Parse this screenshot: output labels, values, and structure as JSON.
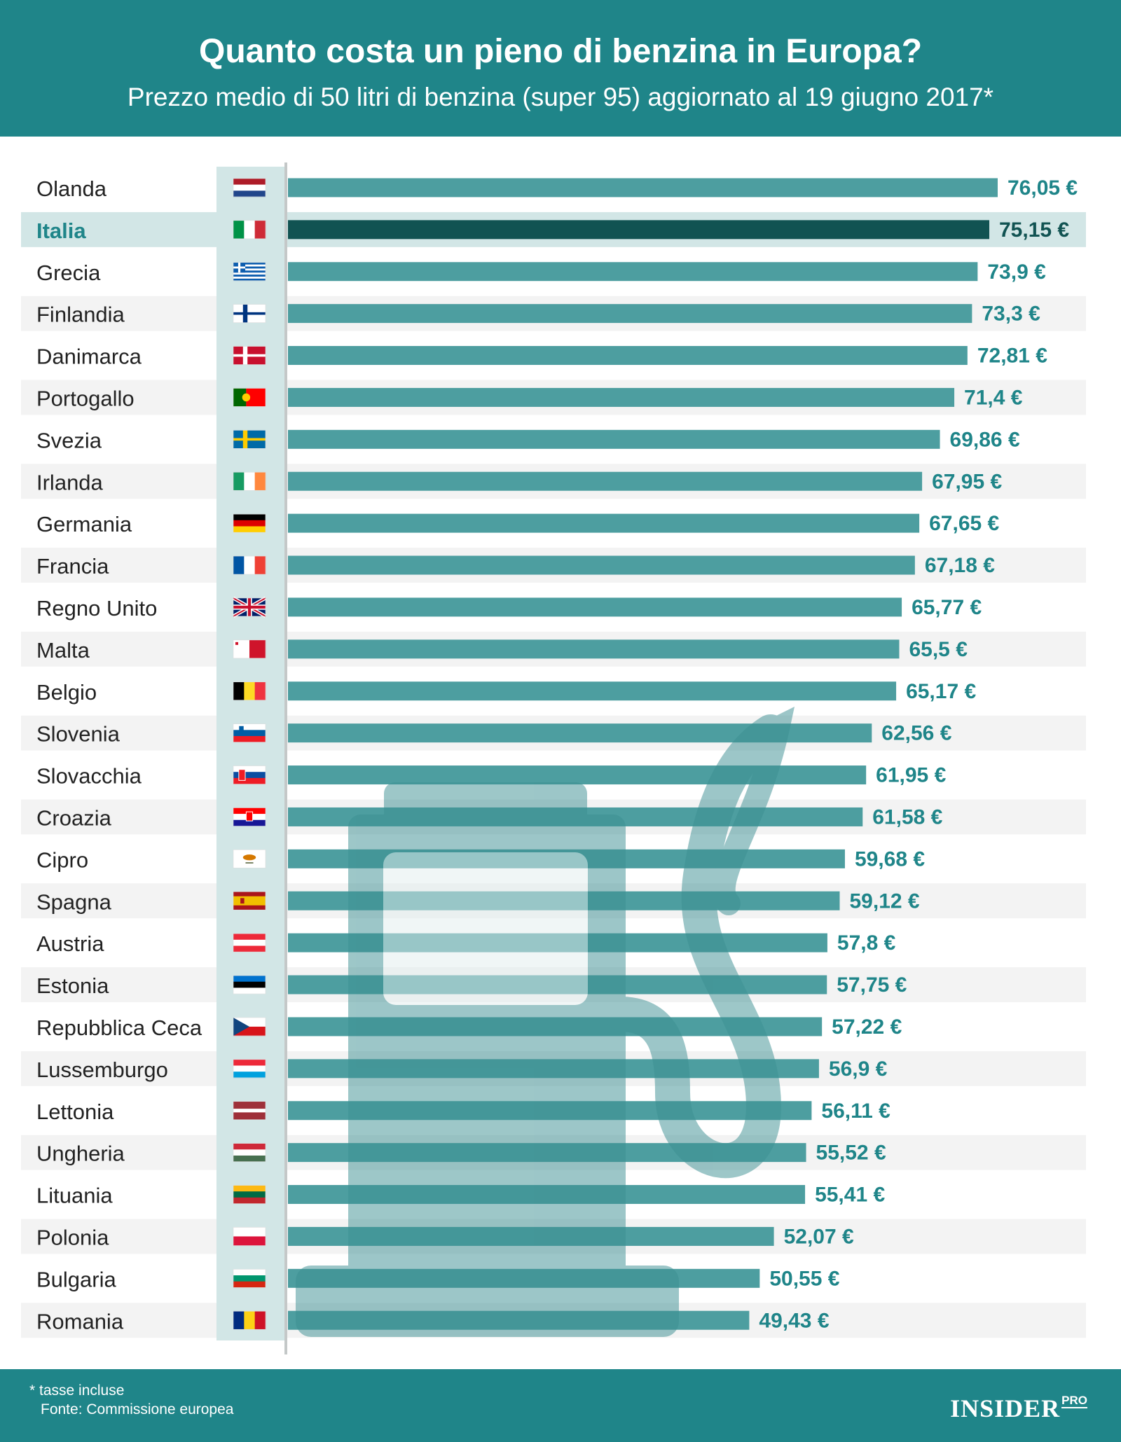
{
  "title": "Quanto costa un pieno di benzina in Europa?",
  "subtitle": "Prezzo medio di 50 litri di benzina (super 95) aggiornato al 19 giugno 2017*",
  "footer": {
    "note": "* tasse incluse",
    "source": "Fonte: Commissione europea",
    "brand": "INSIDER",
    "brand_sub": "PRO"
  },
  "colors": {
    "header_bg": "#1f8589",
    "bar": "#4d9ea0",
    "bar_highlight": "#115352",
    "value_text": "#1f8589",
    "highlight_row": "#d2e6e6",
    "stripe": "#f3f3f3"
  },
  "chart_data": {
    "type": "bar",
    "orientation": "horizontal",
    "highlight": "Italia",
    "categories": [
      "Olanda",
      "Italia",
      "Grecia",
      "Finlandia",
      "Danimarca",
      "Portogallo",
      "Svezia",
      "Irlanda",
      "Germania",
      "Francia",
      "Regno Unito",
      "Malta",
      "Belgio",
      "Slovenia",
      "Slovacchia",
      "Croazia",
      "Cipro",
      "Spagna",
      "Austria",
      "Estonia",
      "Repubblica Ceca",
      "Lussemburgo",
      "Lettonia",
      "Ungheria",
      "Lituania",
      "Polonia",
      "Bulgaria",
      "Romania"
    ],
    "values": [
      76.05,
      75.15,
      73.9,
      73.3,
      72.81,
      71.4,
      69.86,
      67.95,
      67.65,
      67.18,
      65.77,
      65.5,
      65.17,
      62.56,
      61.95,
      61.58,
      59.68,
      59.12,
      57.8,
      57.75,
      57.22,
      56.9,
      56.11,
      55.52,
      55.41,
      52.07,
      50.55,
      49.43
    ],
    "value_labels": [
      "76,05 €",
      "75,15 €",
      "73,9 €",
      "73,3 €",
      "72,81 €",
      "71,4 €",
      "69,86 €",
      "67,95 €",
      "67,65 €",
      "67,18 €",
      "65,77 €",
      "65,5 €",
      "65,17 €",
      "62,56 €",
      "61,95 €",
      "61,58 €",
      "59,68 €",
      "59,12 €",
      "57,8 €",
      "57,75 €",
      "57,22 €",
      "56,9 €",
      "56,11 €",
      "55,52 €",
      "55,41 €",
      "52,07 €",
      "50,55 €",
      "49,43 €"
    ],
    "flags": [
      "nl-flag-icon",
      "it-flag-icon",
      "gr-flag-icon",
      "fi-flag-icon",
      "dk-flag-icon",
      "pt-flag-icon",
      "se-flag-icon",
      "ie-flag-icon",
      "de-flag-icon",
      "fr-flag-icon",
      "gb-flag-icon",
      "mt-flag-icon",
      "be-flag-icon",
      "si-flag-icon",
      "sk-flag-icon",
      "hr-flag-icon",
      "cy-flag-icon",
      "es-flag-icon",
      "at-flag-icon",
      "ee-flag-icon",
      "cz-flag-icon",
      "lu-flag-icon",
      "lv-flag-icon",
      "hu-flag-icon",
      "lt-flag-icon",
      "pl-flag-icon",
      "bg-flag-icon",
      "ro-flag-icon"
    ],
    "xlim": [
      0,
      76.05
    ],
    "grid": false,
    "legend": "none"
  }
}
